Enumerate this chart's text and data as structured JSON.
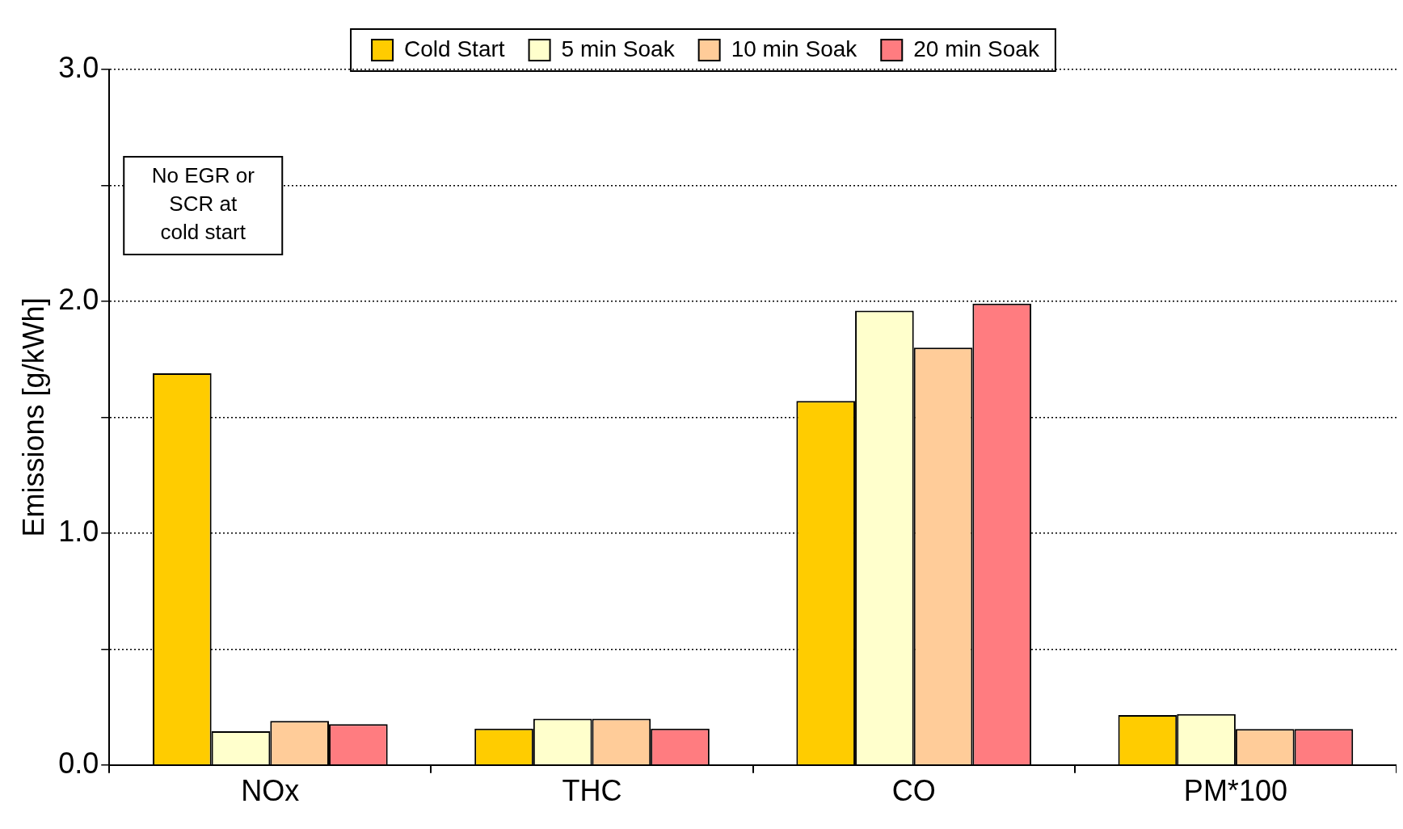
{
  "chart_data": {
    "type": "bar",
    "categories": [
      "NOx",
      "THC",
      "CO",
      "PM*100"
    ],
    "series": [
      {
        "name": "Cold Start",
        "color": "#ffcc00",
        "values": [
          1.69,
          0.157,
          1.57,
          0.215
        ]
      },
      {
        "name": "5 min Soak",
        "color": "#ffffcc",
        "values": [
          0.146,
          0.2,
          1.96,
          0.22
        ]
      },
      {
        "name": "10 min Soak",
        "color": "#ffcc99",
        "values": [
          0.19,
          0.2,
          1.8,
          0.155
        ]
      },
      {
        "name": "20 min Soak",
        "color": "#ff7c80",
        "values": [
          0.176,
          0.157,
          1.99,
          0.155
        ]
      }
    ],
    "ylabel": "Emissions [g/kWh]",
    "ylim": [
      0,
      3
    ],
    "yticks": [
      {
        "value": 0,
        "label": "0.0"
      },
      {
        "value": 0.5,
        "label": null
      },
      {
        "value": 1,
        "label": "1.0"
      },
      {
        "value": 1.5,
        "label": null
      },
      {
        "value": 2,
        "label": "2.0"
      },
      {
        "value": 2.5,
        "label": null
      },
      {
        "value": 3,
        "label": "3.0"
      }
    ],
    "grid": "y",
    "legend": "top",
    "annotations": [
      "No EGR or SCR at cold start"
    ]
  }
}
